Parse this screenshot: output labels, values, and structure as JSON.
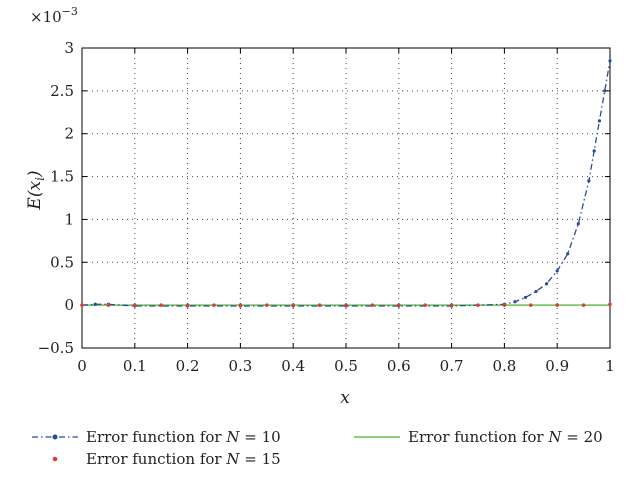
{
  "chart_data": {
    "type": "line",
    "title": "",
    "xlabel": "x",
    "ylabel": "E(x_i)",
    "ylabel_main": "E(x",
    "ylabel_sub": "i",
    "ylabel_close": ")",
    "y_exponent_label": "×10",
    "y_exponent_power": "−3",
    "xlim": [
      0,
      1
    ],
    "ylim": [
      -0.5,
      3
    ],
    "x_ticks": [
      "0",
      "0.1",
      "0.2",
      "0.3",
      "0.4",
      "0.5",
      "0.6",
      "0.7",
      "0.8",
      "0.9",
      "1"
    ],
    "y_ticks": [
      "−0.5",
      "0",
      "0.5",
      "1",
      "1.5",
      "2",
      "2.5",
      "3"
    ],
    "grid": true,
    "legend_position": "bottom",
    "series": [
      {
        "name": "Error function for N = 10",
        "name_prefix": "Error function for ",
        "name_var": "N",
        "name_suffix": " = 10",
        "color": "#2a4b9b",
        "style": "dash-dot with dot markers",
        "x": [
          0,
          0.025,
          0.05,
          0.1,
          0.2,
          0.3,
          0.4,
          0.5,
          0.6,
          0.7,
          0.75,
          0.8,
          0.82,
          0.84,
          0.86,
          0.88,
          0.9,
          0.92,
          0.94,
          0.96,
          0.97,
          0.98,
          0.99,
          1.0
        ],
        "y": [
          0.0,
          0.01,
          0.01,
          -0.01,
          -0.01,
          -0.01,
          -0.01,
          -0.01,
          -0.01,
          -0.01,
          0.0,
          0.01,
          0.04,
          0.09,
          0.16,
          0.25,
          0.4,
          0.6,
          0.95,
          1.45,
          1.8,
          2.15,
          2.5,
          2.85
        ]
      },
      {
        "name": "Error function for N = 15",
        "name_prefix": "Error function for ",
        "name_var": "N",
        "name_suffix": " = 15",
        "color": "#e03a3a",
        "style": "dots",
        "x": [
          0,
          0.05,
          0.1,
          0.15,
          0.2,
          0.25,
          0.3,
          0.35,
          0.4,
          0.45,
          0.5,
          0.55,
          0.6,
          0.65,
          0.7,
          0.75,
          0.8,
          0.85,
          0.9,
          0.95,
          1.0
        ],
        "y": [
          0,
          0,
          0,
          0,
          0,
          0,
          0,
          0,
          0,
          0,
          0,
          0,
          0,
          0,
          0,
          0,
          0,
          0,
          0,
          0,
          0.01
        ]
      },
      {
        "name": "Error function for N = 20",
        "name_prefix": "Error function for ",
        "name_var": "N",
        "name_suffix": " = 20",
        "color": "#6abf4b",
        "style": "solid",
        "x": [
          0,
          0.1,
          0.2,
          0.3,
          0.4,
          0.5,
          0.6,
          0.7,
          0.8,
          0.9,
          1.0
        ],
        "y": [
          0,
          0,
          0,
          0,
          0,
          0,
          0,
          0,
          0,
          0,
          0
        ]
      }
    ]
  }
}
